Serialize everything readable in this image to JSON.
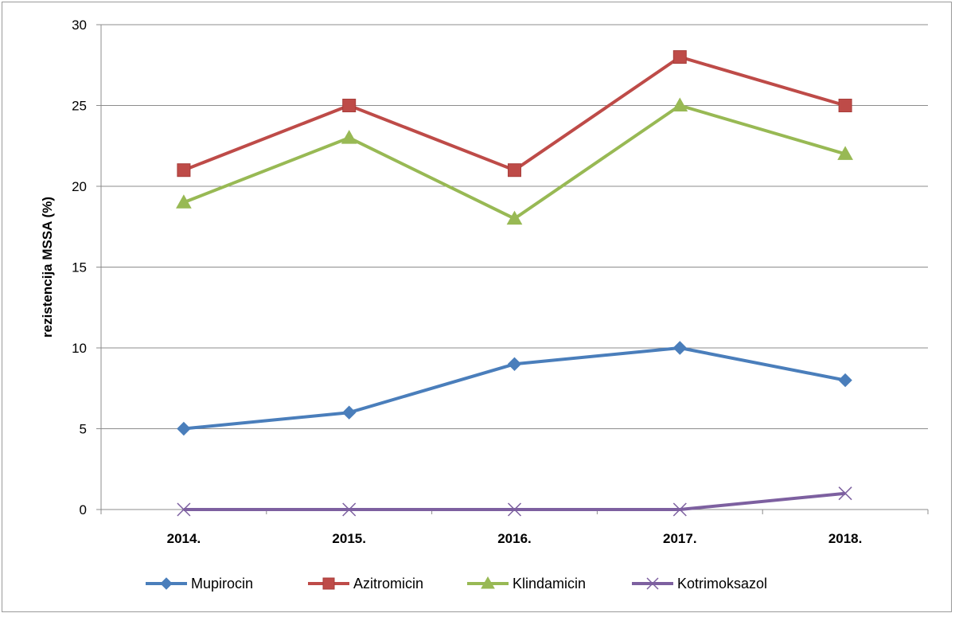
{
  "chart_data": {
    "type": "line",
    "title": "",
    "xlabel": "",
    "ylabel": "rezistencija MSSA (%)",
    "categories": [
      "2014.",
      "2015.",
      "2016.",
      "2017.",
      "2018."
    ],
    "ylim": [
      0,
      30
    ],
    "yticks": [
      0,
      5,
      10,
      15,
      20,
      25,
      30
    ],
    "grid": true,
    "legend_position": "bottom",
    "series": [
      {
        "name": "Mupirocin",
        "values": [
          5,
          6,
          9,
          10,
          8
        ],
        "color": "#4a7ebb",
        "marker": "diamond"
      },
      {
        "name": "Azitromicin",
        "values": [
          21,
          25,
          21,
          28,
          25
        ],
        "color": "#be4b48",
        "marker": "square"
      },
      {
        "name": "Klindamicin",
        "values": [
          19,
          23,
          18,
          25,
          22
        ],
        "color": "#98b954",
        "marker": "triangle"
      },
      {
        "name": "Kotrimoksazol",
        "values": [
          0,
          0,
          0,
          0,
          1
        ],
        "color": "#7d60a0",
        "marker": "x"
      }
    ]
  }
}
